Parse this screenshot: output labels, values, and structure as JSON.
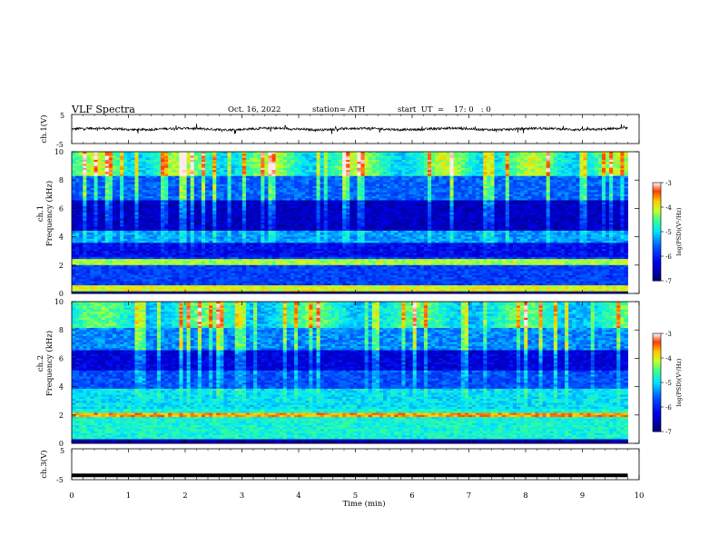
{
  "header": {
    "title": "VLF  Spectra",
    "date": "Oct. 16, 2022",
    "station": "station= ATH",
    "start": "start  UT  =    17: 0   : 0"
  },
  "panels": {
    "ch1_label": "ch.1(V)",
    "ch2_label": "ch.2",
    "ch3_label": "ch.3(V)",
    "spec_ylabel": "Frequency  (kHz)",
    "xlabel": "Time  (min)",
    "colorbar_label": "log(PSD)(V²/Hz)"
  },
  "chart_data": [
    {
      "type": "line",
      "name": "ch.1 waveform",
      "ylabel": "ch.1(V)",
      "ylim": [
        -5,
        5
      ],
      "yticks": [
        5,
        -5
      ],
      "xlim": [
        0,
        10
      ],
      "approx_mean": 0,
      "approx_peak_amplitude": 1.0,
      "data_extent_min": 9.8
    },
    {
      "type": "heatmap",
      "name": "ch.1 spectrogram",
      "ylabel": "Frequency  (kHz)",
      "ylim": [
        0,
        10
      ],
      "yticks": [
        0,
        2,
        4,
        6,
        8,
        10
      ],
      "xlim": [
        0,
        10
      ],
      "data_extent_min": 9.8,
      "colorbar": {
        "label": "log(PSD)(V²/Hz)",
        "range": [
          -7,
          -3
        ],
        "ticks": [
          -3,
          -4,
          -5,
          -6,
          -7
        ]
      },
      "features": "intense 8-10 kHz band with vertical sferic streaks; quiet band 4.5-6 kHz; bright lines near 0.3 and 2.2 kHz"
    },
    {
      "type": "heatmap",
      "name": "ch.2 spectrogram",
      "ylabel": "Frequency  (kHz)",
      "ylim": [
        0,
        10
      ],
      "yticks": [
        0,
        2,
        4,
        6,
        8,
        10
      ],
      "xlim": [
        0,
        10
      ],
      "data_extent_min": 9.8,
      "colorbar": {
        "label": "log(PSD)(V²/Hz)",
        "range": [
          -7,
          -3
        ],
        "ticks": [
          -3,
          -4,
          -5,
          -6,
          -7
        ]
      },
      "features": "green/yellow upper band with streaks; bright line near 2 kHz; elevated 0-2 kHz"
    },
    {
      "type": "line",
      "name": "ch.3 waveform",
      "ylabel": "ch.3(V)",
      "ylim": [
        -5,
        5
      ],
      "yticks": [
        5,
        -5
      ],
      "xlim": [
        0,
        10
      ],
      "approx_level": -3.6,
      "data_extent_min": 9.8
    }
  ],
  "xaxis": {
    "ticks": [
      "0",
      "1",
      "2",
      "3",
      "4",
      "5",
      "6",
      "7",
      "8",
      "9",
      "10"
    ],
    "range": [
      0,
      10
    ]
  }
}
